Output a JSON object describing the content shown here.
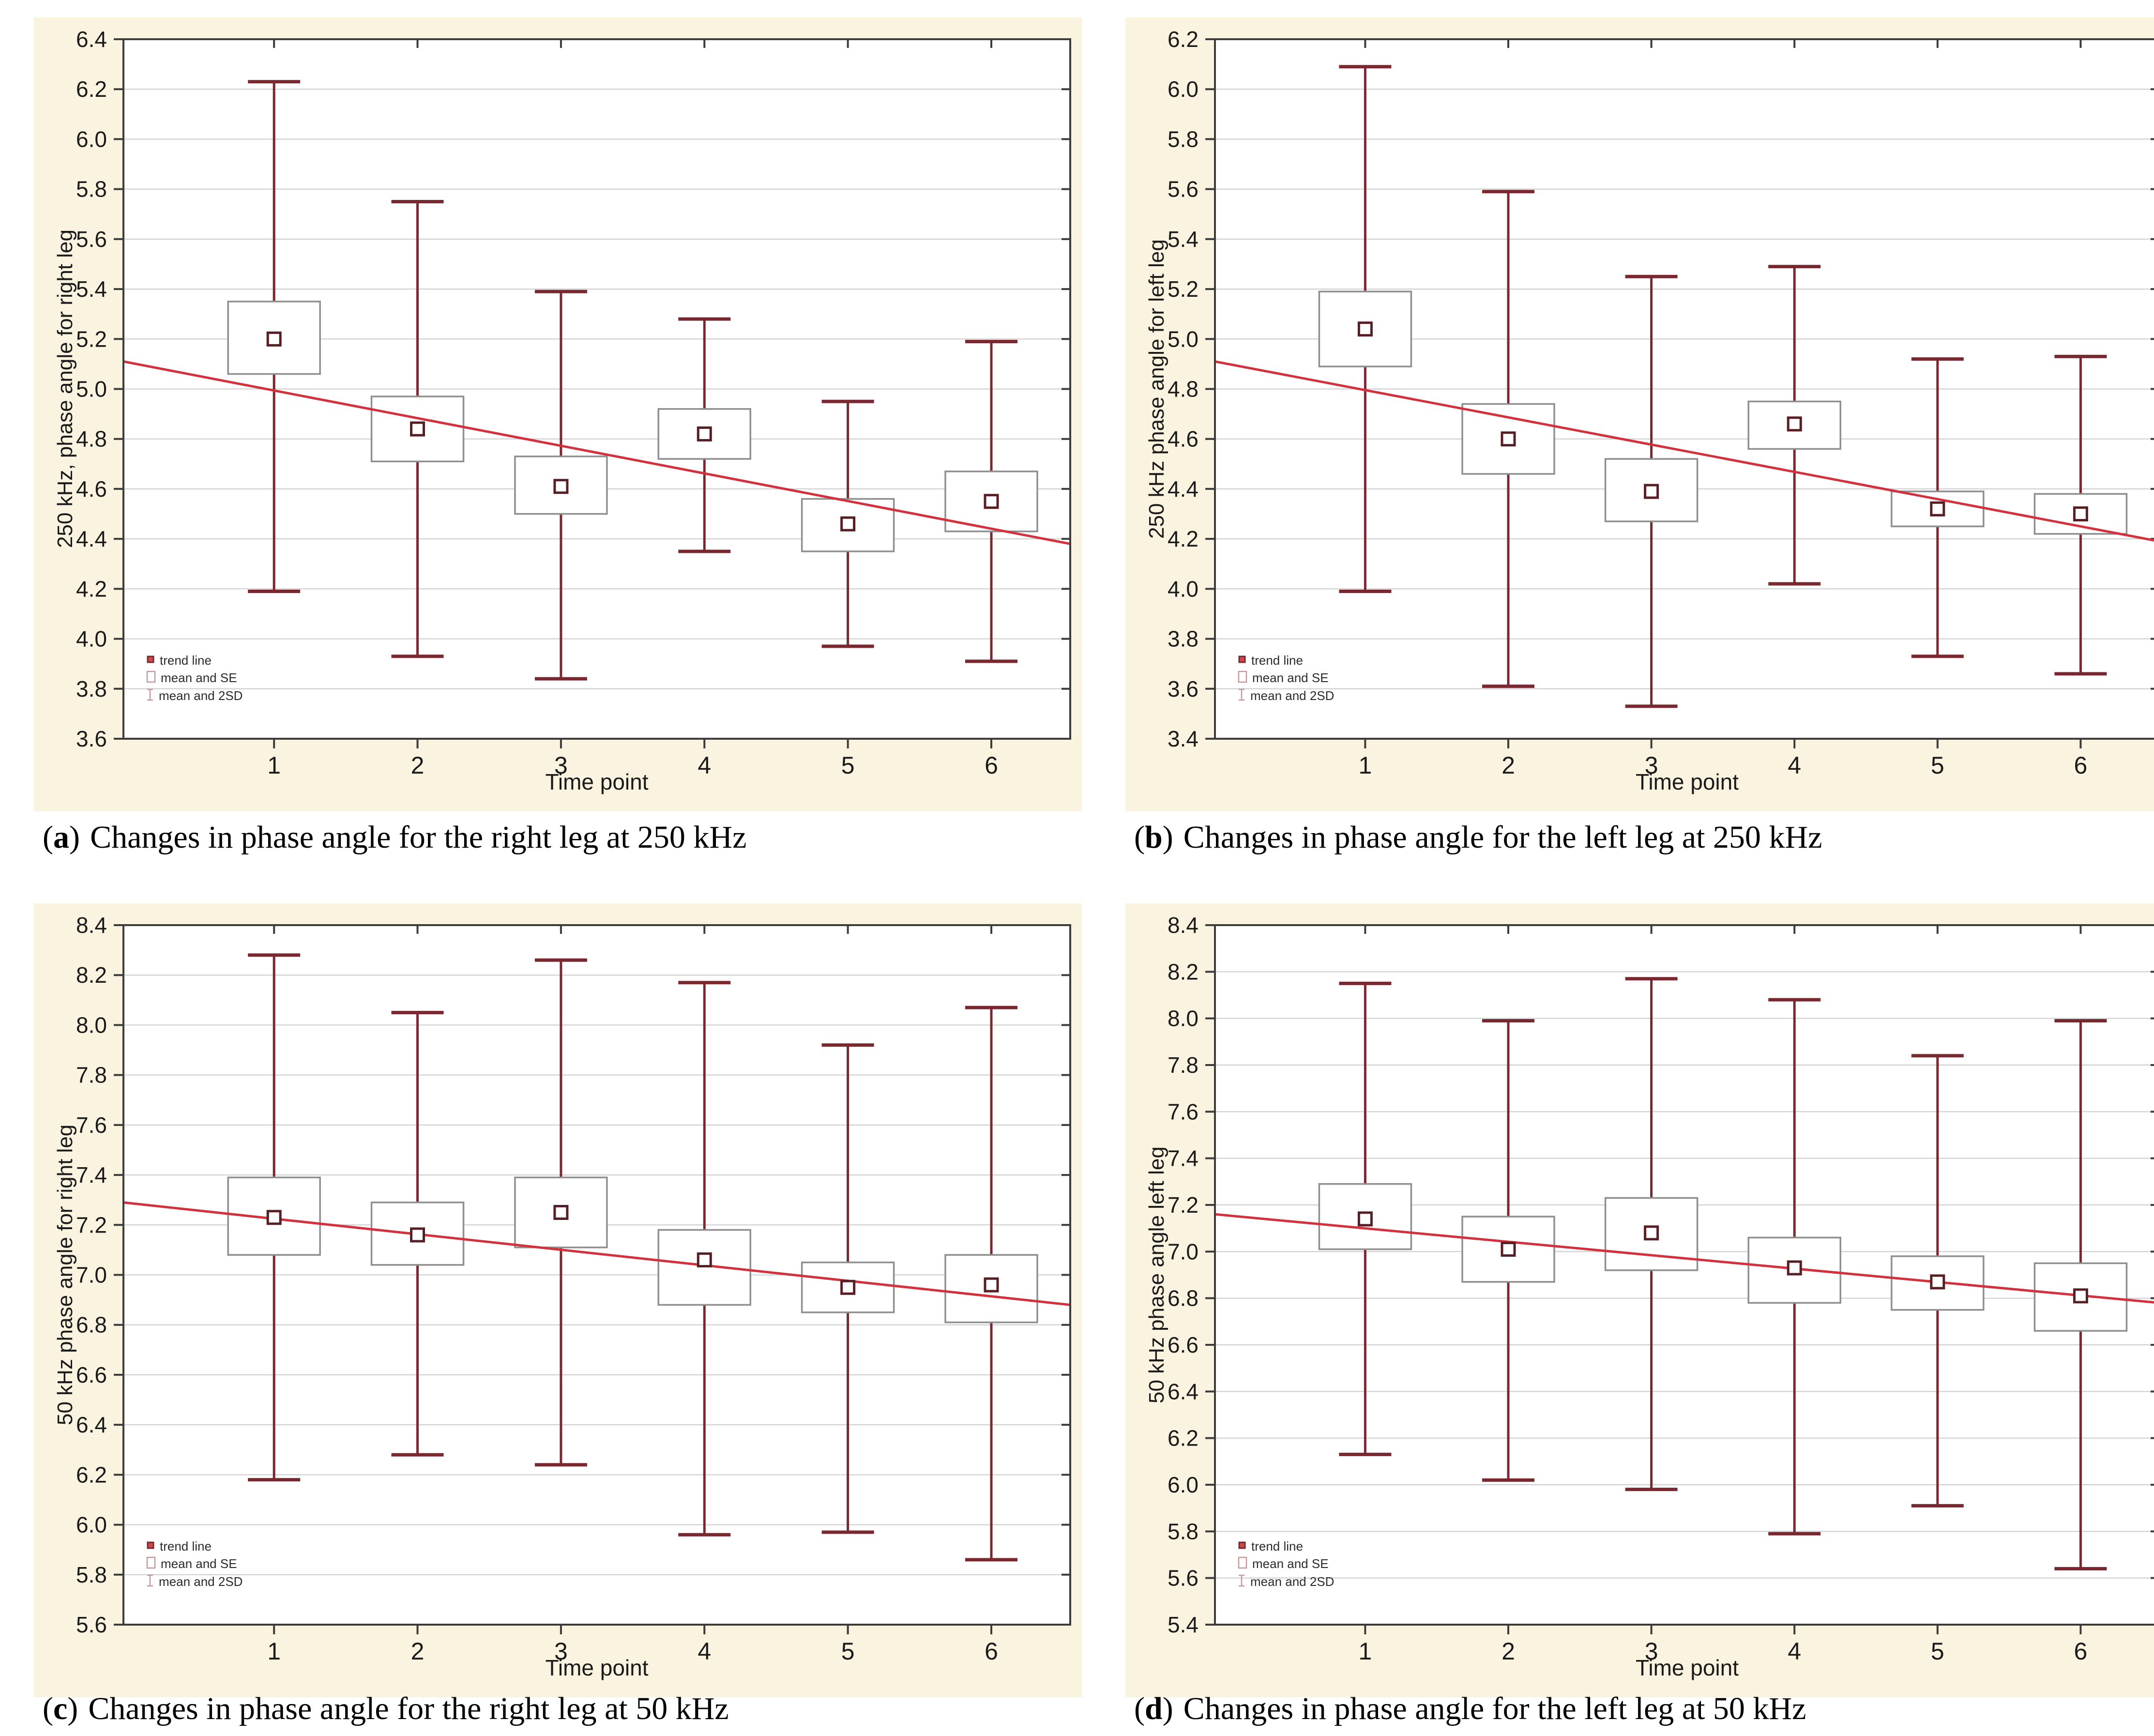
{
  "colors": {
    "panel_bg": "#faf3df",
    "plot_bg": "#ffffff",
    "grid": "#cccccc",
    "axis": "#3c3c3c",
    "whisker": "#7a2830",
    "se_box": "#8f8f8f",
    "mean_marker": "#571f24",
    "trend": "#d2323e",
    "tick_text": "#1a1a1a",
    "legend_marker_light": "#c49999",
    "legend_trend_fill": "#cc4a4a"
  },
  "legend": {
    "items": [
      {
        "label": "trend line"
      },
      {
        "label": "mean and SE"
      },
      {
        "label": "mean and 2SD"
      }
    ]
  },
  "captions": [
    {
      "open": "(",
      "letter": "a",
      "close": ")",
      "text": "Changes in phase angle for the right leg at 250 kHz"
    },
    {
      "open": "(",
      "letter": "b",
      "close": ")",
      "text": "Changes in phase angle for the left leg at 250 kHz"
    },
    {
      "open": "(",
      "letter": "c",
      "close": ")",
      "text": "Changes in phase angle for the right leg at 50 kHz"
    },
    {
      "open": "(",
      "letter": "d",
      "close": ")",
      "text": "Changes in phase angle for the left leg at 50 kHz"
    }
  ],
  "chart_data": [
    {
      "type": "box-mean-se-2sd",
      "xlabel": "Time point",
      "ylabel": "250 kHz, phase angle for right leg",
      "x": [
        1,
        2,
        3,
        4,
        5,
        6
      ],
      "xtick_labels": [
        "1",
        "2",
        "3",
        "4",
        "5",
        "6"
      ],
      "ylim": [
        3.6,
        6.4
      ],
      "ytick_step": 0.2,
      "grid": "horizontal",
      "legend_position": "bottom-left",
      "series": {
        "mean": [
          5.2,
          4.84,
          4.61,
          4.82,
          4.46,
          4.55
        ],
        "se_low": [
          5.06,
          4.71,
          4.5,
          4.72,
          4.35,
          4.43
        ],
        "se_high": [
          5.35,
          4.97,
          4.73,
          4.92,
          4.56,
          4.67
        ],
        "sd2_low": [
          4.19,
          3.93,
          3.84,
          4.35,
          3.97,
          3.91
        ],
        "sd2_high": [
          6.23,
          5.75,
          5.39,
          5.28,
          4.95,
          5.19
        ]
      },
      "trend_line": {
        "y_at_left_edge": 5.11,
        "y_at_right_edge": 4.38
      }
    },
    {
      "type": "box-mean-se-2sd",
      "xlabel": "Time point",
      "ylabel": "250 kHz phase angle for left leg",
      "x": [
        1,
        2,
        3,
        4,
        5,
        6
      ],
      "xtick_labels": [
        "1",
        "2",
        "3",
        "4",
        "5",
        "6"
      ],
      "ylim": [
        3.4,
        6.2
      ],
      "ytick_step": 0.2,
      "grid": "horizontal",
      "legend_position": "bottom-left",
      "series": {
        "mean": [
          5.04,
          4.6,
          4.39,
          4.66,
          4.32,
          4.3
        ],
        "se_low": [
          4.89,
          4.46,
          4.27,
          4.56,
          4.25,
          4.22
        ],
        "se_high": [
          5.19,
          4.74,
          4.52,
          4.75,
          4.39,
          4.38
        ],
        "sd2_low": [
          3.99,
          3.61,
          3.53,
          4.02,
          3.73,
          3.66
        ],
        "sd2_high": [
          6.09,
          5.59,
          5.25,
          5.29,
          4.92,
          4.93
        ]
      },
      "trend_line": {
        "y_at_left_edge": 4.91,
        "y_at_right_edge": 4.19
      }
    },
    {
      "type": "box-mean-se-2sd",
      "xlabel": "Time point",
      "ylabel": "50 kHz phase angle for right leg",
      "x": [
        1,
        2,
        3,
        4,
        5,
        6
      ],
      "xtick_labels": [
        "1",
        "2",
        "3",
        "4",
        "5",
        "6"
      ],
      "ylim": [
        5.6,
        8.4
      ],
      "ytick_step": 0.2,
      "grid": "horizontal",
      "legend_position": "bottom-left",
      "series": {
        "mean": [
          7.23,
          7.16,
          7.25,
          7.06,
          6.95,
          6.96
        ],
        "se_low": [
          7.08,
          7.04,
          7.11,
          6.88,
          6.85,
          6.81
        ],
        "se_high": [
          7.39,
          7.29,
          7.39,
          7.18,
          7.05,
          7.08
        ],
        "sd2_low": [
          6.18,
          6.28,
          6.24,
          5.96,
          5.97,
          5.86
        ],
        "sd2_high": [
          8.28,
          8.05,
          8.26,
          8.17,
          7.92,
          8.07
        ]
      },
      "trend_line": {
        "y_at_left_edge": 7.29,
        "y_at_right_edge": 6.88
      }
    },
    {
      "type": "box-mean-se-2sd",
      "xlabel": "Time point",
      "ylabel": "50 kHz phase angle left leg",
      "x": [
        1,
        2,
        3,
        4,
        5,
        6
      ],
      "xtick_labels": [
        "1",
        "2",
        "3",
        "4",
        "5",
        "6"
      ],
      "ylim": [
        5.4,
        8.4
      ],
      "ytick_step": 0.2,
      "grid": "horizontal",
      "legend_position": "bottom-left",
      "series": {
        "mean": [
          7.14,
          7.01,
          7.08,
          6.93,
          6.87,
          6.81
        ],
        "se_low": [
          7.01,
          6.87,
          6.92,
          6.78,
          6.75,
          6.66
        ],
        "se_high": [
          7.29,
          7.15,
          7.23,
          7.06,
          6.98,
          6.95
        ],
        "sd2_low": [
          6.13,
          6.02,
          5.98,
          5.79,
          5.91,
          5.64
        ],
        "sd2_high": [
          8.15,
          7.99,
          8.17,
          8.08,
          7.84,
          7.99
        ]
      },
      "trend_line": {
        "y_at_left_edge": 7.16,
        "y_at_right_edge": 6.78
      }
    }
  ]
}
